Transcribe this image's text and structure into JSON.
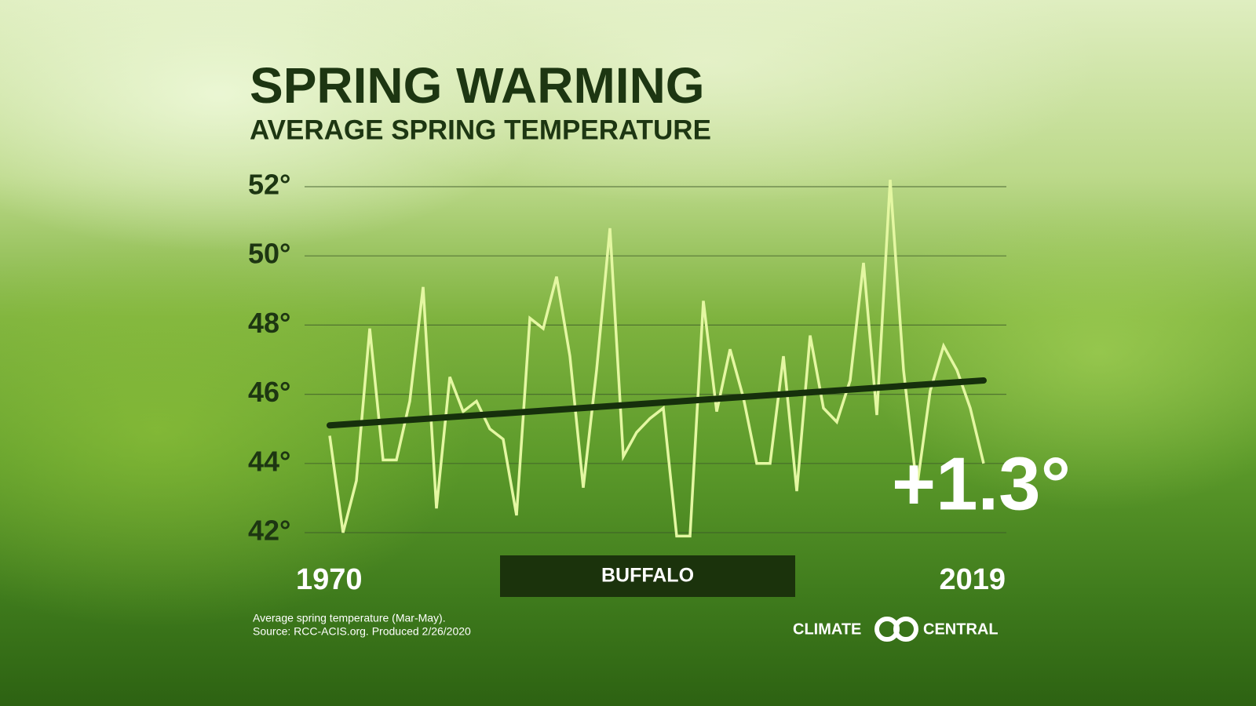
{
  "chart_data": {
    "type": "line",
    "title": "SPRING WARMING",
    "subtitle": "AVERAGE SPRING TEMPERATURE",
    "x": [
      1970,
      1971,
      1972,
      1973,
      1974,
      1975,
      1976,
      1977,
      1978,
      1979,
      1980,
      1981,
      1982,
      1983,
      1984,
      1985,
      1986,
      1987,
      1988,
      1989,
      1990,
      1991,
      1992,
      1993,
      1994,
      1995,
      1996,
      1997,
      1998,
      1999,
      2000,
      2001,
      2002,
      2003,
      2004,
      2005,
      2006,
      2007,
      2008,
      2009,
      2010,
      2011,
      2012,
      2013,
      2014,
      2015,
      2016,
      2017,
      2018,
      2019
    ],
    "series": [
      {
        "color": "#e4f7a2",
        "values": [
          44.8,
          42.0,
          43.5,
          47.9,
          44.1,
          44.1,
          45.8,
          49.1,
          42.7,
          46.5,
          45.5,
          45.8,
          45.0,
          44.7,
          42.5,
          48.2,
          47.9,
          49.4,
          47.1,
          43.3,
          46.7,
          50.8,
          44.2,
          44.9,
          45.3,
          45.6,
          41.9,
          41.9,
          48.7,
          45.5,
          47.3,
          45.9,
          44.0,
          44.0,
          47.1,
          43.2,
          47.7,
          45.6,
          45.2,
          46.4,
          49.8,
          45.4,
          52.2,
          46.7,
          43.3,
          46.1,
          47.4,
          46.7,
          45.6,
          44.0
        ]
      }
    ],
    "trend": {
      "color": "#16300c",
      "x": [
        1970,
        2019
      ],
      "values": [
        45.1,
        46.4
      ]
    },
    "annotation": "+1.3°",
    "location": "BUFFALO",
    "xlim": [
      1970,
      2019
    ],
    "xticks": [
      1970,
      2019
    ],
    "ylim": [
      42,
      52
    ],
    "yticks": [
      {
        "value": 42,
        "label": "42°"
      },
      {
        "value": 44,
        "label": "44°"
      },
      {
        "value": 46,
        "label": "46°"
      },
      {
        "value": 48,
        "label": "48°"
      },
      {
        "value": 50,
        "label": "50°"
      },
      {
        "value": 52,
        "label": "52°"
      }
    ],
    "grid": true,
    "notes": [
      "Average spring temperature (Mar-May).",
      "Source: RCC-ACIS.org. Produced 2/26/2020"
    ],
    "logo": [
      "CLIMATE",
      "CENTRAL"
    ]
  }
}
